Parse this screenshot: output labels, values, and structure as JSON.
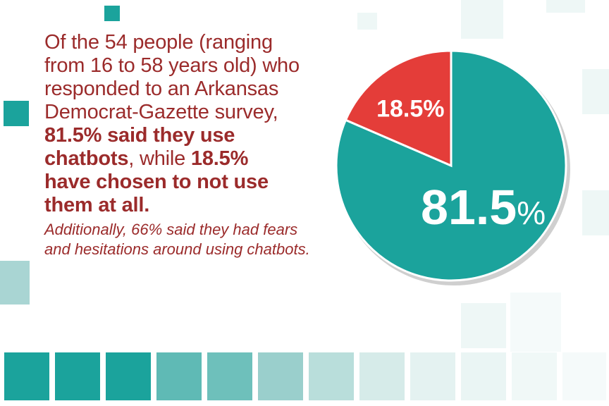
{
  "headline": {
    "line1": "Of the 54 people (ranging",
    "line2": "from 16 to 58 years old) who",
    "line3": "responded to an Arkansas",
    "line4": "Democrat-Gazette survey,",
    "line5": "81.5% said they use",
    "line6_bold": "chatbots",
    "line6_mid": ", while",
    "line6_bold2": "18.5%",
    "line7": "have chosen to not use",
    "line8": "them at all."
  },
  "note": {
    "line1": "Additionally, 66% said they had fears",
    "line2": "and hesitations around using chatbots."
  },
  "colors": {
    "teal": "#1ba39c",
    "red": "#e43d39",
    "text": "#9b2b2b"
  },
  "chart_data": {
    "type": "pie",
    "slices": [
      {
        "label": "81.5",
        "value": 81.5,
        "color": "#1ba39c"
      },
      {
        "label": "18.5%",
        "value": 18.5,
        "color": "#e43d39"
      }
    ],
    "percent_sign": "%"
  }
}
